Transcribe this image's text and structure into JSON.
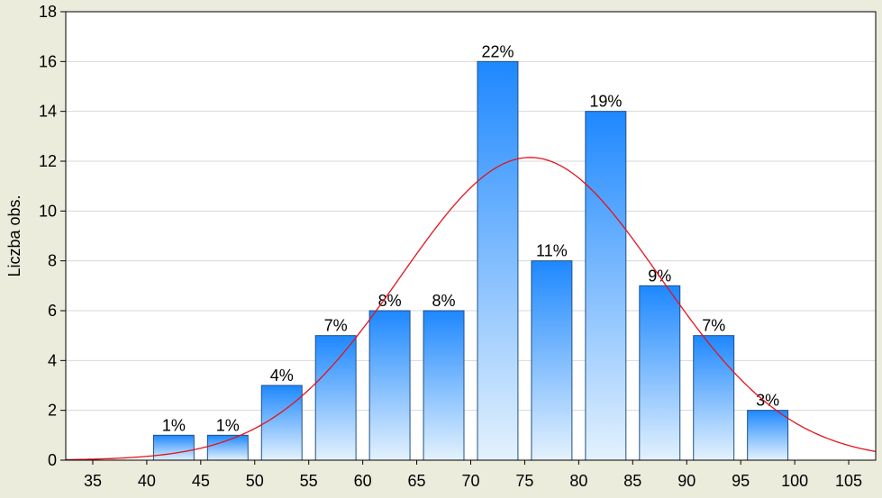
{
  "chart_data": {
    "type": "bar",
    "title": "",
    "xlabel": "",
    "ylabel": "Liczba obs.",
    "bins": [
      {
        "x0": 40,
        "x1": 45,
        "value": 1,
        "label": "1%"
      },
      {
        "x0": 45,
        "x1": 50,
        "value": 1,
        "label": "1%"
      },
      {
        "x0": 50,
        "x1": 55,
        "value": 3,
        "label": "4%"
      },
      {
        "x0": 55,
        "x1": 60,
        "value": 5,
        "label": "7%"
      },
      {
        "x0": 60,
        "x1": 65,
        "value": 6,
        "label": "8%"
      },
      {
        "x0": 65,
        "x1": 70,
        "value": 6,
        "label": "8%"
      },
      {
        "x0": 70,
        "x1": 75,
        "value": 16,
        "label": "22%"
      },
      {
        "x0": 75,
        "x1": 80,
        "value": 8,
        "label": "11%"
      },
      {
        "x0": 80,
        "x1": 85,
        "value": 14,
        "label": "19%"
      },
      {
        "x0": 85,
        "x1": 90,
        "value": 7,
        "label": "9%"
      },
      {
        "x0": 90,
        "x1": 95,
        "value": 5,
        "label": "7%"
      },
      {
        "x0": 95,
        "x1": 100,
        "value": 2,
        "label": "3%"
      }
    ],
    "x_ticks": [
      "35",
      "40",
      "45",
      "50",
      "55",
      "60",
      "65",
      "70",
      "75",
      "80",
      "85",
      "90",
      "95",
      "100",
      "105"
    ],
    "y_ticks": [
      "0",
      "2",
      "4",
      "6",
      "8",
      "10",
      "12",
      "14",
      "16",
      "18"
    ],
    "xlim": [
      32.5,
      107.5
    ],
    "ylim": [
      0,
      18
    ],
    "grid": true,
    "normal_curve": {
      "mean": 75.5,
      "sd": 12.0,
      "peak": 12.15,
      "color": "#e3121b"
    },
    "colors": {
      "bar_top": "#1e88ff",
      "bar_bottom": "#e4f2fd",
      "bar_border": "#1f4f86",
      "background": "#ececdd",
      "plot_background": "#ffffff",
      "grid": "#d8d8d8"
    }
  }
}
